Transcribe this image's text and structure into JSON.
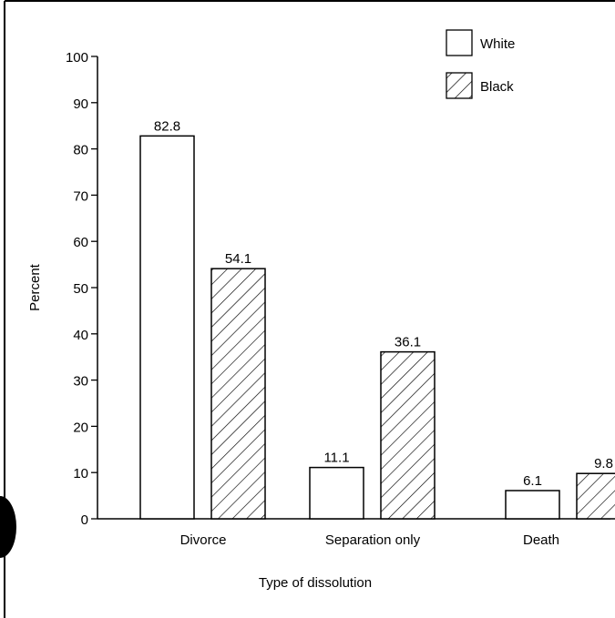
{
  "chart_data": {
    "type": "bar",
    "categories": [
      "Divorce",
      "Separation only",
      "Death"
    ],
    "series": [
      {
        "name": "White",
        "values": [
          82.8,
          11.1,
          6.1
        ],
        "pattern": "solid",
        "fill": "#ffffff"
      },
      {
        "name": "Black",
        "values": [
          54.1,
          36.1,
          9.8
        ],
        "pattern": "diagonal-hatch",
        "fill": "#ffffff"
      }
    ],
    "data_labels": [
      [
        "82.8",
        "11.1",
        "6.1"
      ],
      [
        "54.1",
        "36.1",
        "9.8"
      ]
    ],
    "xlabel": "Type of dissolution",
    "ylabel": "Percent",
    "ylim": [
      0,
      100
    ],
    "yticks": [
      0,
      10,
      20,
      30,
      40,
      50,
      60,
      70,
      80,
      90,
      100
    ],
    "ytick_labels": [
      "0",
      "10",
      "20",
      "30",
      "40",
      "50",
      "60",
      "70",
      "80",
      "90",
      "100"
    ],
    "grid": false,
    "legend_position": "top-right",
    "colors": {
      "stroke": "#000000",
      "background": "#ffffff"
    }
  }
}
